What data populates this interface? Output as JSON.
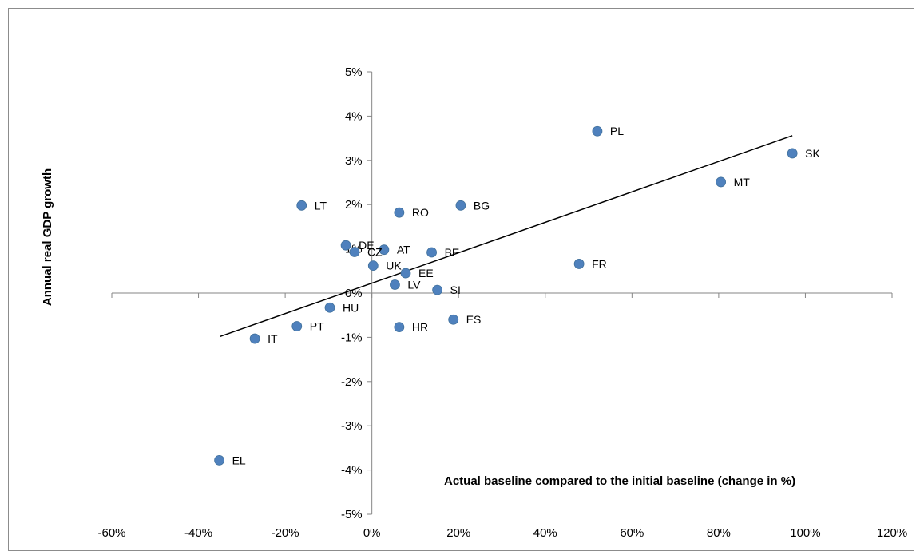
{
  "chart_data": {
    "type": "scatter",
    "title": "",
    "xlabel": "Actual baseline compared to the initial baseline (change in %)",
    "ylabel": "Annual real GDP growth",
    "xlim": [
      -0.6,
      1.2
    ],
    "ylim": [
      -0.05,
      0.05
    ],
    "x_ticks": [
      "-60%",
      "-40%",
      "-20%",
      "0%",
      "20%",
      "40%",
      "60%",
      "80%",
      "100%",
      "120%"
    ],
    "y_ticks": [
      "5%",
      "4%",
      "3%",
      "2%",
      "1%",
      "0%",
      "-1%",
      "-2%",
      "-3%",
      "-4%",
      "-5%"
    ],
    "grid": false,
    "legend": "none",
    "point_color": "#4f81bd",
    "trendline": {
      "x": [
        -0.35,
        0.97
      ],
      "y": [
        -0.0098,
        0.0356
      ],
      "color": "#000000"
    },
    "points": [
      {
        "label": "PL",
        "x": 0.52,
        "y": 0.0366
      },
      {
        "label": "SK",
        "x": 0.97,
        "y": 0.0316
      },
      {
        "label": "MT",
        "x": 0.805,
        "y": 0.0251
      },
      {
        "label": "LT",
        "x": -0.162,
        "y": 0.0198
      },
      {
        "label": "BG",
        "x": 0.205,
        "y": 0.0198
      },
      {
        "label": "RO",
        "x": 0.063,
        "y": 0.0182
      },
      {
        "label": "DE",
        "x": -0.06,
        "y": 0.0108
      },
      {
        "label": "CZ",
        "x": -0.04,
        "y": 0.0093
      },
      {
        "label": "AT",
        "x": 0.028,
        "y": 0.0098
      },
      {
        "label": "BE",
        "x": 0.138,
        "y": 0.0092
      },
      {
        "label": "FR",
        "x": 0.478,
        "y": 0.0066
      },
      {
        "label": "UK",
        "x": 0.003,
        "y": 0.0062
      },
      {
        "label": "EE",
        "x": 0.078,
        "y": 0.0045
      },
      {
        "label": "LV",
        "x": 0.053,
        "y": 0.0019
      },
      {
        "label": "SI",
        "x": 0.151,
        "y": 0.0007
      },
      {
        "label": "HU",
        "x": -0.097,
        "y": -0.0033
      },
      {
        "label": "PT",
        "x": -0.173,
        "y": -0.0075
      },
      {
        "label": "HR",
        "x": 0.063,
        "y": -0.0077
      },
      {
        "label": "ES",
        "x": 0.188,
        "y": -0.006
      },
      {
        "label": "IT",
        "x": -0.27,
        "y": -0.0103
      },
      {
        "label": "EL",
        "x": -0.352,
        "y": -0.0378
      }
    ]
  }
}
